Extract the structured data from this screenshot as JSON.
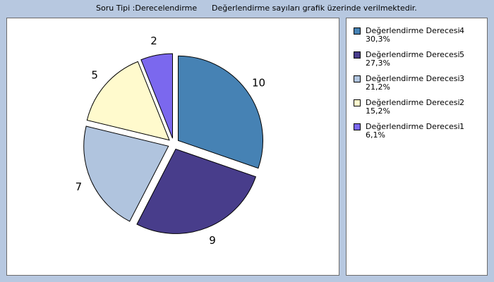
{
  "header": {
    "question_type": "Soru Tipi :Derecelendirme",
    "note": "Değerlendirme sayıları grafik üzerinde verilmektedir."
  },
  "chart_data": {
    "type": "pie",
    "slices": [
      {
        "label": "Değerlendirme Derecesi",
        "rank": "4",
        "value": 10,
        "percent": "30,3%",
        "color": "#4682b4"
      },
      {
        "label": "Değerlendirme Derecesi",
        "rank": "5",
        "value": 9,
        "percent": "27,3%",
        "color": "#483d8b"
      },
      {
        "label": "Değerlendirme Derecesi",
        "rank": "3",
        "value": 7,
        "percent": "21,2%",
        "color": "#b0c4de"
      },
      {
        "label": "Değerlendirme Derecesi",
        "rank": "2",
        "value": 5,
        "percent": "15,2%",
        "color": "#fffacd"
      },
      {
        "label": "Değerlendirme Derecesi",
        "rank": "1",
        "value": 2,
        "percent": "6,1%",
        "color": "#7b68ee"
      }
    ],
    "legend_placement": "right",
    "exploded": true,
    "value_labels": [
      "10",
      "9",
      "7",
      "5",
      "2"
    ]
  }
}
